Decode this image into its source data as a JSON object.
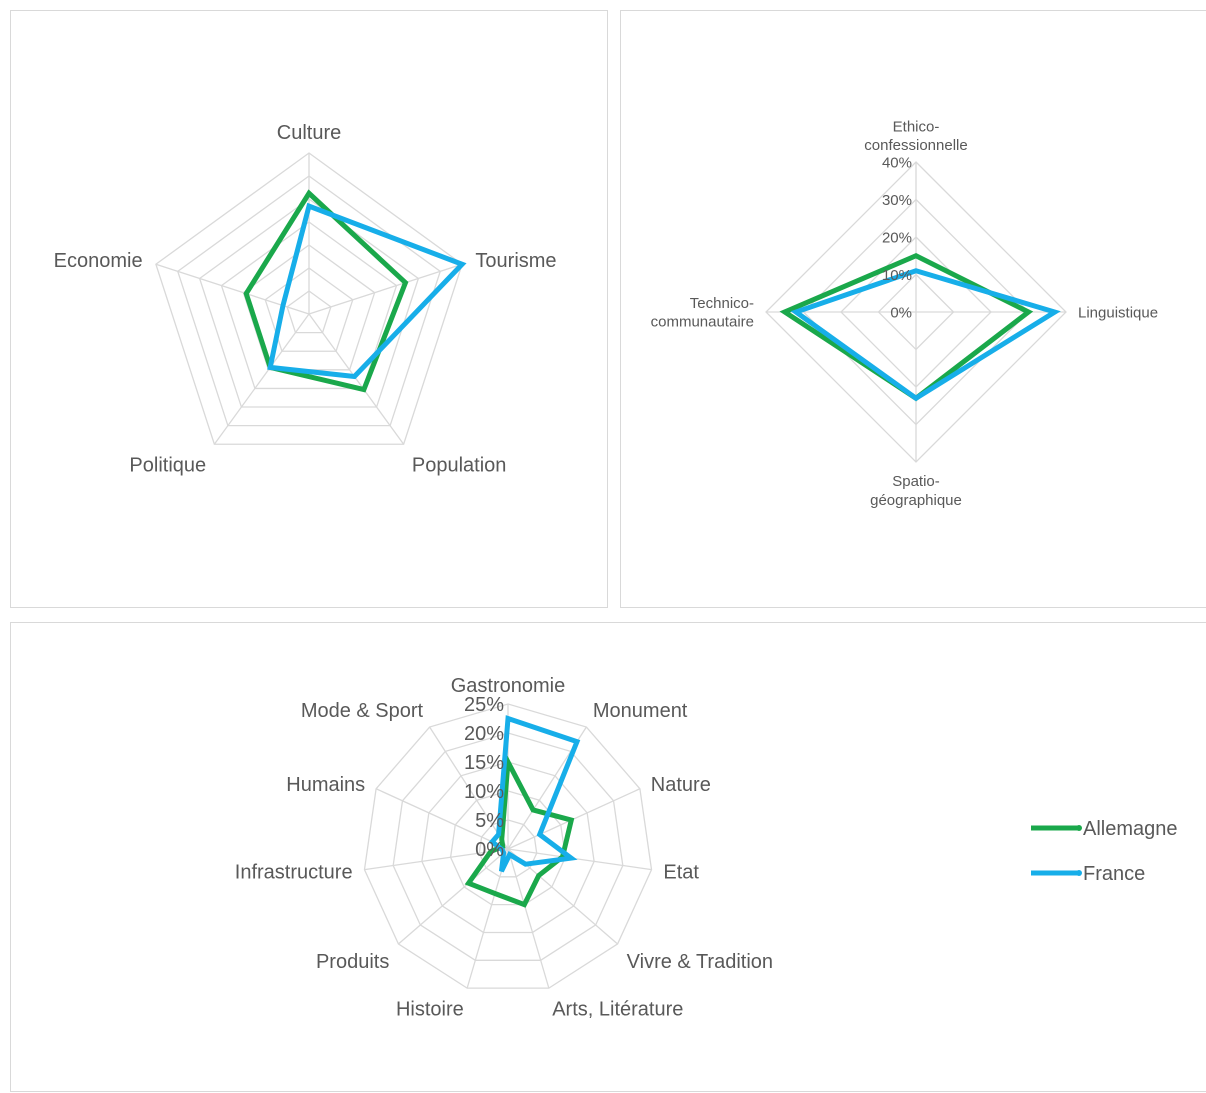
{
  "chart_data": [
    {
      "type": "radar",
      "title": "",
      "categories": [
        "Culture",
        "Tourisme",
        "Population",
        "Politique",
        "Economie"
      ],
      "rings": 7,
      "series": [
        {
          "name": "Allemagne",
          "values": [
            0.75,
            0.63,
            0.58,
            0.41,
            0.41
          ]
        },
        {
          "name": "France",
          "values": [
            0.67,
            1.0,
            0.48,
            0.41,
            0.17
          ]
        }
      ],
      "show_tick_labels": false
    },
    {
      "type": "radar",
      "title": "",
      "categories": [
        "Ethico-confessionnelle",
        "Linguistique",
        "Spatio-géographique",
        "Technico-communautaire"
      ],
      "category_lines": [
        [
          "Ethico-",
          "confessionnelle"
        ],
        [
          "Linguistique"
        ],
        [
          "Spatio-",
          "géographique"
        ],
        [
          "Technico-",
          "communautaire"
        ]
      ],
      "tick_labels": [
        "0%",
        "10%",
        "20%",
        "30%",
        "40%"
      ],
      "ylim": [
        0,
        40
      ],
      "series": [
        {
          "name": "Allemagne",
          "values": [
            15,
            30,
            23,
            35
          ]
        },
        {
          "name": "France",
          "values": [
            11,
            37,
            23,
            32
          ]
        }
      ]
    },
    {
      "type": "radar",
      "title": "",
      "categories": [
        "Gastronomie",
        "Monument",
        "Nature",
        "Etat",
        "Vivre & Tradition",
        "Arts, Litérature",
        "Histoire",
        "Produits",
        "Infrastructure",
        "Humains",
        "Mode & Sport"
      ],
      "tick_labels": [
        "0%",
        "5%",
        "10%",
        "15%",
        "20%",
        "25%"
      ],
      "ylim": [
        0,
        25
      ],
      "series": [
        {
          "name": "Allemagne",
          "values": [
            15,
            8,
            12,
            9.5,
            7,
            10,
            8,
            9,
            3,
            1,
            2
          ]
        },
        {
          "name": "France",
          "values": [
            22.5,
            22,
            6,
            11,
            4,
            1,
            4,
            1,
            1,
            3,
            3
          ]
        }
      ],
      "legend": {
        "position": "right",
        "entries": [
          "Allemagne",
          "France"
        ]
      }
    }
  ],
  "colors": {
    "Allemagne": "#1aa84b",
    "France": "#17aee9",
    "grid": "#d9d9d9",
    "label": "#595959"
  }
}
